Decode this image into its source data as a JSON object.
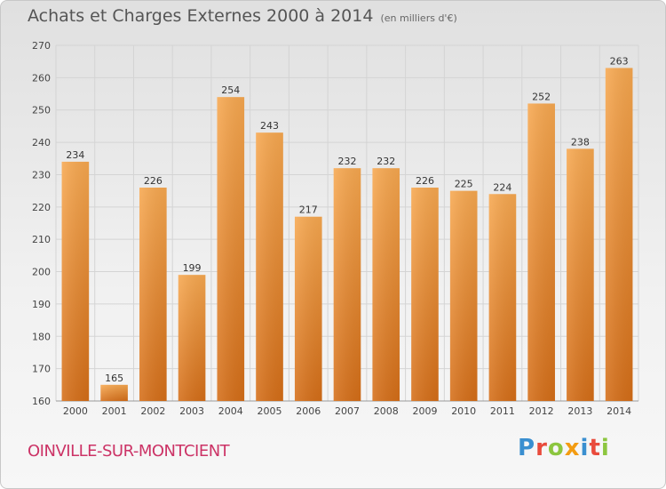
{
  "header": {
    "title": "Achats et Charges Externes 2000 à 2014",
    "subtitle": "(en milliers d'€)"
  },
  "footer": {
    "city": "OINVILLE-SUR-MONTCIENT",
    "logo_text": "Proxiti"
  },
  "colors": {
    "bar_light": "#f5a04a",
    "bar_dark": "#d9741c",
    "grid": "#d4d4d4",
    "city": "#cc3366"
  },
  "chart_data": {
    "type": "bar",
    "title": "Achats et Charges Externes 2000 à 2014",
    "subtitle": "(en milliers d'€)",
    "categories": [
      "2000",
      "2001",
      "2002",
      "2003",
      "2004",
      "2005",
      "2006",
      "2007",
      "2008",
      "2009",
      "2010",
      "2011",
      "2012",
      "2013",
      "2014"
    ],
    "values": [
      234,
      165,
      226,
      199,
      254,
      243,
      217,
      232,
      232,
      226,
      225,
      224,
      252,
      238,
      263
    ],
    "ylim": [
      160,
      270
    ],
    "yticks": [
      160,
      170,
      180,
      190,
      200,
      210,
      220,
      230,
      240,
      250,
      260,
      270
    ],
    "grid": true,
    "xlabel": "",
    "ylabel": ""
  }
}
